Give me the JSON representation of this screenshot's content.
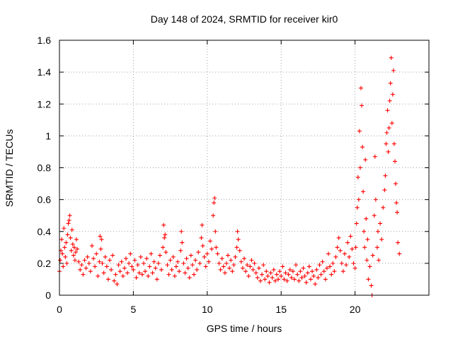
{
  "chart_data": {
    "type": "scatter",
    "title": "Day 148 of 2024, SRMTID for receiver kir0",
    "xlabel": "GPS time / hours",
    "ylabel": "SRMTID / TECUs",
    "xlim": [
      0,
      25
    ],
    "ylim": [
      0,
      1.6
    ],
    "xticks": [
      0,
      5,
      10,
      15,
      20
    ],
    "xtick_labels": [
      "0",
      "5",
      "10",
      "15",
      "20"
    ],
    "yticks": [
      0,
      0.2,
      0.4,
      0.6,
      0.8,
      1.0,
      1.2,
      1.4,
      1.6
    ],
    "ytick_labels": [
      "0",
      "0.2",
      "0.4",
      "0.6",
      "0.8",
      "1",
      "1.2",
      "1.4",
      "1.6"
    ],
    "grid": true,
    "marker": "plus",
    "color": "#ff0000",
    "series": [
      {
        "name": "SRMTID",
        "points": [
          [
            0.0,
            0.15
          ],
          [
            0.05,
            0.22
          ],
          [
            0.1,
            0.28
          ],
          [
            0.15,
            0.35
          ],
          [
            0.2,
            0.26
          ],
          [
            0.25,
            0.18
          ],
          [
            0.3,
            0.42
          ],
          [
            0.35,
            0.3
          ],
          [
            0.4,
            0.24
          ],
          [
            0.45,
            0.33
          ],
          [
            0.5,
            0.2
          ],
          [
            0.55,
            0.38
          ],
          [
            0.6,
            0.45
          ],
          [
            0.65,
            0.47
          ],
          [
            0.7,
            0.5
          ],
          [
            0.75,
            0.36
          ],
          [
            0.8,
            0.28
          ],
          [
            0.85,
            0.41
          ],
          [
            0.9,
            0.32
          ],
          [
            0.95,
            0.25
          ],
          [
            1.0,
            0.3
          ],
          [
            1.05,
            0.22
          ],
          [
            1.1,
            0.27
          ],
          [
            1.15,
            0.35
          ],
          [
            1.2,
            0.29
          ],
          [
            1.3,
            0.21
          ],
          [
            1.4,
            0.16
          ],
          [
            1.5,
            0.19
          ],
          [
            1.6,
            0.13
          ],
          [
            1.7,
            0.22
          ],
          [
            1.8,
            0.17
          ],
          [
            1.9,
            0.24
          ],
          [
            2.0,
            0.2
          ],
          [
            2.1,
            0.15
          ],
          [
            2.2,
            0.31
          ],
          [
            2.3,
            0.23
          ],
          [
            2.4,
            0.18
          ],
          [
            2.5,
            0.26
          ],
          [
            2.6,
            0.12
          ],
          [
            2.7,
            0.21
          ],
          [
            2.75,
            0.37
          ],
          [
            2.8,
            0.29
          ],
          [
            2.85,
            0.35
          ],
          [
            2.9,
            0.2
          ],
          [
            3.0,
            0.14
          ],
          [
            3.1,
            0.24
          ],
          [
            3.2,
            0.18
          ],
          [
            3.3,
            0.1
          ],
          [
            3.4,
            0.22
          ],
          [
            3.5,
            0.16
          ],
          [
            3.6,
            0.25
          ],
          [
            3.7,
            0.09
          ],
          [
            3.8,
            0.13
          ],
          [
            3.9,
            0.07
          ],
          [
            4.0,
            0.19
          ],
          [
            4.1,
            0.15
          ],
          [
            4.2,
            0.21
          ],
          [
            4.3,
            0.12
          ],
          [
            4.4,
            0.17
          ],
          [
            4.5,
            0.23
          ],
          [
            4.6,
            0.14
          ],
          [
            4.7,
            0.2
          ],
          [
            4.8,
            0.26
          ],
          [
            4.9,
            0.18
          ],
          [
            5.0,
            0.16
          ],
          [
            5.1,
            0.22
          ],
          [
            5.2,
            0.11
          ],
          [
            5.3,
            0.19
          ],
          [
            5.4,
            0.14
          ],
          [
            5.5,
            0.24
          ],
          [
            5.6,
            0.13
          ],
          [
            5.7,
            0.2
          ],
          [
            5.8,
            0.15
          ],
          [
            5.9,
            0.23
          ],
          [
            6.0,
            0.12
          ],
          [
            6.1,
            0.18
          ],
          [
            6.2,
            0.26
          ],
          [
            6.3,
            0.14
          ],
          [
            6.4,
            0.21
          ],
          [
            6.5,
            0.17
          ],
          [
            6.6,
            0.1
          ],
          [
            6.7,
            0.2
          ],
          [
            6.8,
            0.25
          ],
          [
            6.9,
            0.16
          ],
          [
            7.0,
            0.3
          ],
          [
            7.05,
            0.44
          ],
          [
            7.1,
            0.36
          ],
          [
            7.15,
            0.38
          ],
          [
            7.2,
            0.27
          ],
          [
            7.3,
            0.19
          ],
          [
            7.4,
            0.13
          ],
          [
            7.5,
            0.22
          ],
          [
            7.6,
            0.16
          ],
          [
            7.7,
            0.24
          ],
          [
            7.8,
            0.12
          ],
          [
            7.9,
            0.18
          ],
          [
            8.0,
            0.21
          ],
          [
            8.1,
            0.15
          ],
          [
            8.2,
            0.28
          ],
          [
            8.25,
            0.4
          ],
          [
            8.3,
            0.33
          ],
          [
            8.4,
            0.2
          ],
          [
            8.5,
            0.14
          ],
          [
            8.6,
            0.23
          ],
          [
            8.7,
            0.17
          ],
          [
            8.8,
            0.11
          ],
          [
            8.9,
            0.25
          ],
          [
            9.0,
            0.19
          ],
          [
            9.1,
            0.13
          ],
          [
            9.2,
            0.22
          ],
          [
            9.3,
            0.16
          ],
          [
            9.4,
            0.27
          ],
          [
            9.5,
            0.2
          ],
          [
            9.6,
            0.36
          ],
          [
            9.65,
            0.44
          ],
          [
            9.7,
            0.31
          ],
          [
            9.8,
            0.24
          ],
          [
            9.9,
            0.18
          ],
          [
            10.0,
            0.26
          ],
          [
            10.1,
            0.21
          ],
          [
            10.2,
            0.34
          ],
          [
            10.3,
            0.29
          ],
          [
            10.4,
            0.5
          ],
          [
            10.45,
            0.58
          ],
          [
            10.5,
            0.61
          ],
          [
            10.55,
            0.4
          ],
          [
            10.6,
            0.3
          ],
          [
            10.7,
            0.26
          ],
          [
            10.8,
            0.2
          ],
          [
            10.9,
            0.16
          ],
          [
            11.0,
            0.23
          ],
          [
            11.1,
            0.18
          ],
          [
            11.2,
            0.14
          ],
          [
            11.3,
            0.2
          ],
          [
            11.4,
            0.25
          ],
          [
            11.5,
            0.17
          ],
          [
            11.6,
            0.22
          ],
          [
            11.7,
            0.15
          ],
          [
            11.8,
            0.19
          ],
          [
            11.9,
            0.24
          ],
          [
            12.0,
            0.3
          ],
          [
            12.05,
            0.4
          ],
          [
            12.1,
            0.35
          ],
          [
            12.2,
            0.28
          ],
          [
            12.3,
            0.21
          ],
          [
            12.4,
            0.17
          ],
          [
            12.5,
            0.23
          ],
          [
            12.6,
            0.15
          ],
          [
            12.7,
            0.19
          ],
          [
            12.8,
            0.12
          ],
          [
            12.9,
            0.18
          ],
          [
            13.0,
            0.22
          ],
          [
            13.1,
            0.16
          ],
          [
            13.2,
            0.2
          ],
          [
            13.3,
            0.14
          ],
          [
            13.4,
            0.11
          ],
          [
            13.5,
            0.17
          ],
          [
            13.6,
            0.09
          ],
          [
            13.7,
            0.13
          ],
          [
            13.8,
            0.19
          ],
          [
            13.9,
            0.1
          ],
          [
            14.0,
            0.15
          ],
          [
            14.1,
            0.12
          ],
          [
            14.2,
            0.08
          ],
          [
            14.3,
            0.14
          ],
          [
            14.4,
            0.11
          ],
          [
            14.5,
            0.16
          ],
          [
            14.6,
            0.09
          ],
          [
            14.7,
            0.13
          ],
          [
            14.8,
            0.1
          ],
          [
            14.9,
            0.15
          ],
          [
            15.0,
            0.12
          ],
          [
            15.1,
            0.18
          ],
          [
            15.2,
            0.1
          ],
          [
            15.3,
            0.14
          ],
          [
            15.4,
            0.09
          ],
          [
            15.5,
            0.13
          ],
          [
            15.6,
            0.16
          ],
          [
            15.7,
            0.11
          ],
          [
            15.8,
            0.15
          ],
          [
            15.9,
            0.1
          ],
          [
            16.0,
            0.19
          ],
          [
            16.1,
            0.13
          ],
          [
            16.2,
            0.09
          ],
          [
            16.3,
            0.15
          ],
          [
            16.4,
            0.11
          ],
          [
            16.5,
            0.17
          ],
          [
            16.6,
            0.12
          ],
          [
            16.7,
            0.08
          ],
          [
            16.8,
            0.14
          ],
          [
            16.9,
            0.18
          ],
          [
            17.0,
            0.1
          ],
          [
            17.1,
            0.15
          ],
          [
            17.2,
            0.12
          ],
          [
            17.3,
            0.07
          ],
          [
            17.4,
            0.16
          ],
          [
            17.5,
            0.11
          ],
          [
            17.6,
            0.19
          ],
          [
            17.7,
            0.13
          ],
          [
            17.8,
            0.21
          ],
          [
            17.9,
            0.15
          ],
          [
            18.0,
            0.1
          ],
          [
            18.1,
            0.17
          ],
          [
            18.2,
            0.26
          ],
          [
            18.3,
            0.18
          ],
          [
            18.4,
            0.13
          ],
          [
            18.5,
            0.2
          ],
          [
            18.6,
            0.15
          ],
          [
            18.7,
            0.24
          ],
          [
            18.8,
            0.3
          ],
          [
            18.9,
            0.36
          ],
          [
            19.0,
            0.28
          ],
          [
            19.1,
            0.2
          ],
          [
            19.2,
            0.15
          ],
          [
            19.3,
            0.26
          ],
          [
            19.4,
            0.19
          ],
          [
            19.5,
            0.33
          ],
          [
            19.6,
            0.24
          ],
          [
            19.7,
            0.37
          ],
          [
            19.8,
            0.29
          ],
          [
            19.9,
            0.2
          ],
          [
            20.0,
            0.17
          ],
          [
            20.05,
            0.3
          ],
          [
            20.1,
            0.45
          ],
          [
            20.15,
            0.55
          ],
          [
            20.2,
            0.74
          ],
          [
            20.25,
            0.6
          ],
          [
            20.3,
            1.03
          ],
          [
            20.35,
            0.8
          ],
          [
            20.4,
            1.3
          ],
          [
            20.45,
            1.19
          ],
          [
            20.5,
            0.93
          ],
          [
            20.55,
            0.65
          ],
          [
            20.6,
            0.4
          ],
          [
            20.65,
            0.3
          ],
          [
            20.7,
            0.85
          ],
          [
            20.75,
            0.48
          ],
          [
            20.8,
            0.22
          ],
          [
            20.85,
            0.35
          ],
          [
            20.9,
            0.1
          ],
          [
            21.0,
            0.18
          ],
          [
            21.1,
            0.06
          ],
          [
            21.15,
            0.0
          ],
          [
            21.2,
            0.25
          ],
          [
            21.3,
            0.5
          ],
          [
            21.35,
            0.87
          ],
          [
            21.4,
            0.6
          ],
          [
            21.5,
            0.3
          ],
          [
            21.55,
            0.4
          ],
          [
            21.6,
            0.22
          ],
          [
            21.7,
            0.45
          ],
          [
            21.8,
            0.35
          ],
          [
            21.9,
            0.55
          ],
          [
            22.0,
            0.66
          ],
          [
            22.05,
            0.75
          ],
          [
            22.1,
            0.95
          ],
          [
            22.15,
            1.02
          ],
          [
            22.2,
            1.16
          ],
          [
            22.25,
            0.9
          ],
          [
            22.3,
            1.05
          ],
          [
            22.35,
            1.22
          ],
          [
            22.4,
            1.33
          ],
          [
            22.45,
            1.49
          ],
          [
            22.5,
            1.08
          ],
          [
            22.55,
            1.26
          ],
          [
            22.6,
            1.41
          ],
          [
            22.65,
            0.95
          ],
          [
            22.7,
            0.84
          ],
          [
            22.75,
            0.7
          ],
          [
            22.8,
            0.58
          ],
          [
            22.85,
            0.52
          ],
          [
            22.9,
            0.33
          ],
          [
            23.0,
            0.26
          ]
        ]
      }
    ]
  }
}
